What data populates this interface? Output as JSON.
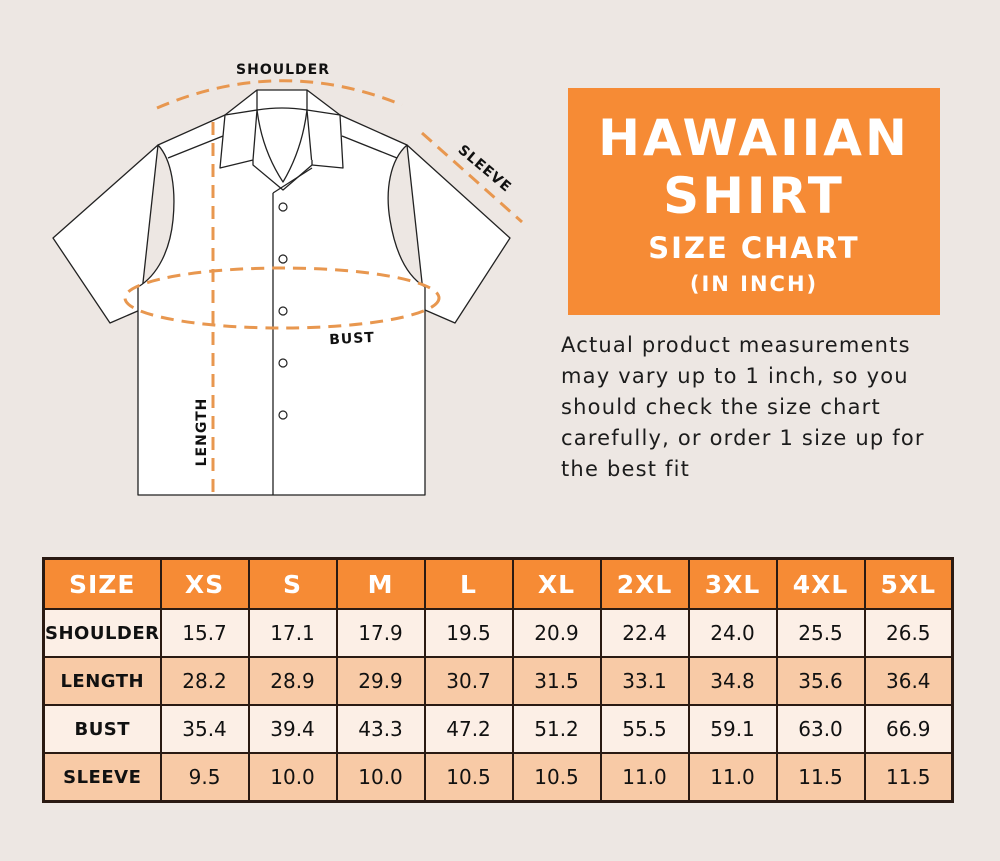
{
  "diagram": {
    "labels": {
      "shoulder": "SHOULDER",
      "sleeve": "SLEEVE",
      "bust": "BUST",
      "length": "LENGTH"
    },
    "measure_line_color": "#e8974f"
  },
  "title": {
    "line1": "HAWAIIAN",
    "line2": "SHIRT",
    "line3": "SIZE CHART",
    "line4": "(IN INCH)",
    "background": "#f68b35"
  },
  "description": {
    "lines": [
      "Actual product measurements",
      "may vary up to 1 inch, so you",
      "should check the size chart",
      "carefully, or order 1 size up for",
      "the best fit"
    ]
  },
  "table": {
    "headers": [
      "SIZE",
      "XS",
      "S",
      "M",
      "L",
      "XL",
      "2XL",
      "3XL",
      "4XL",
      "5XL"
    ],
    "rows": [
      {
        "label": "SHOULDER",
        "values": [
          "15.7",
          "17.1",
          "17.9",
          "19.5",
          "20.9",
          "22.4",
          "24.0",
          "25.5",
          "26.5"
        ]
      },
      {
        "label": "LENGTH",
        "values": [
          "28.2",
          "28.9",
          "29.9",
          "30.7",
          "31.5",
          "33.1",
          "34.8",
          "35.6",
          "36.4"
        ]
      },
      {
        "label": "BUST",
        "values": [
          "35.4",
          "39.4",
          "43.3",
          "47.2",
          "51.2",
          "55.5",
          "59.1",
          "63.0",
          "66.9"
        ]
      },
      {
        "label": "SLEEVE",
        "values": [
          "9.5",
          "10.0",
          "10.0",
          "10.5",
          "10.5",
          "11.0",
          "11.0",
          "11.5",
          "11.5"
        ]
      }
    ]
  }
}
